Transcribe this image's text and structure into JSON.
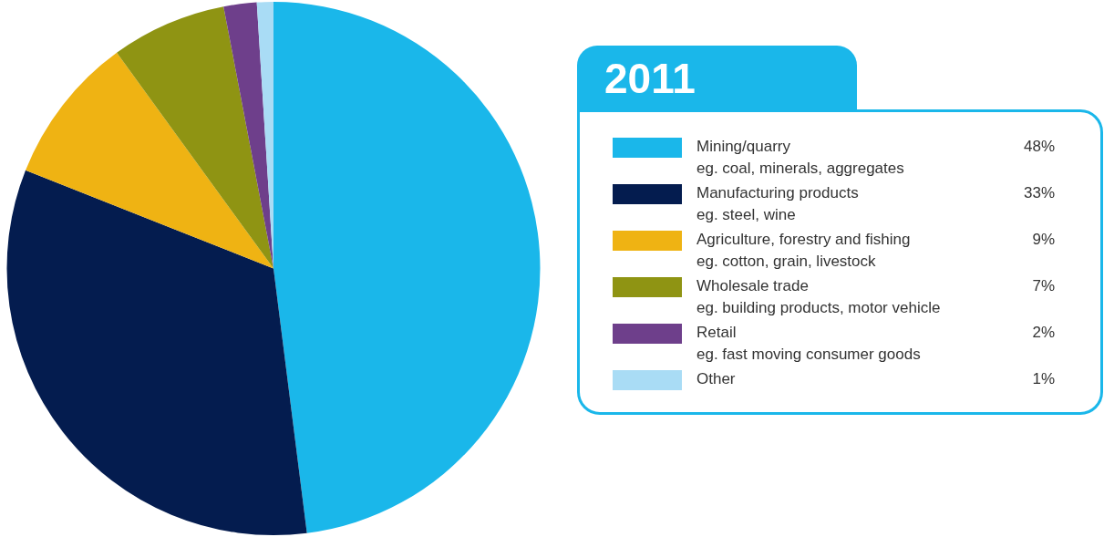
{
  "chart_data": {
    "type": "pie",
    "legend_title": "2011",
    "legend": "right",
    "categories": [
      "Mining/quarry\neg. coal, minerals, aggregates",
      "Manufacturing products\neg. steel, wine",
      "Agriculture, forestry and fishing\neg. cotton, grain, livestock",
      "Wholesale trade\neg. building products, motor vehicle",
      "Retail\neg. fast moving consumer goods",
      "Other"
    ],
    "values": [
      48,
      33,
      9,
      7,
      2,
      1
    ],
    "value_labels": [
      "48%",
      "33%",
      "9%",
      "7%",
      "2%",
      "1%"
    ],
    "colors": [
      "#1ab7ea",
      "#041c4f",
      "#efb313",
      "#8f9413",
      "#6e3f8b",
      "#a9dcf5"
    ]
  }
}
